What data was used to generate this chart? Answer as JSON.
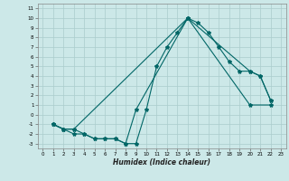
{
  "xlabel": "Humidex (Indice chaleur)",
  "bg_color": "#cce8e8",
  "line_color": "#006666",
  "grid_color": "#aacccc",
  "xlim": [
    -0.5,
    23.5
  ],
  "ylim": [
    -3.5,
    11.5
  ],
  "xticks": [
    0,
    1,
    2,
    3,
    4,
    5,
    6,
    7,
    8,
    9,
    10,
    11,
    12,
    13,
    14,
    15,
    16,
    17,
    18,
    19,
    20,
    21,
    22,
    23
  ],
  "yticks": [
    -3,
    -2,
    -1,
    0,
    1,
    2,
    3,
    4,
    5,
    6,
    7,
    8,
    9,
    10,
    11
  ],
  "line1_x": [
    1,
    2,
    3,
    4,
    5,
    6,
    7,
    8,
    9,
    10,
    11,
    12,
    13,
    14,
    15,
    16,
    17,
    18,
    19,
    20,
    21,
    22
  ],
  "line1_y": [
    -1,
    -1.5,
    -2,
    -2,
    -2.5,
    -2.5,
    -2.5,
    -3,
    -3,
    0.5,
    5,
    7,
    8.5,
    10,
    9.5,
    8.5,
    7,
    5.5,
    4.5,
    4.5,
    4,
    1.5
  ],
  "line2_x": [
    1,
    2,
    3,
    14,
    20,
    21,
    22
  ],
  "line2_y": [
    -1,
    -1.5,
    -1.5,
    10,
    4.5,
    4,
    1.5
  ],
  "line3_x": [
    1,
    2,
    3,
    4,
    5,
    6,
    7,
    8,
    9,
    14,
    20,
    22
  ],
  "line3_y": [
    -1,
    -1.5,
    -1.5,
    -2,
    -2.5,
    -2.5,
    -2.5,
    -3,
    0.5,
    10,
    1,
    1
  ]
}
